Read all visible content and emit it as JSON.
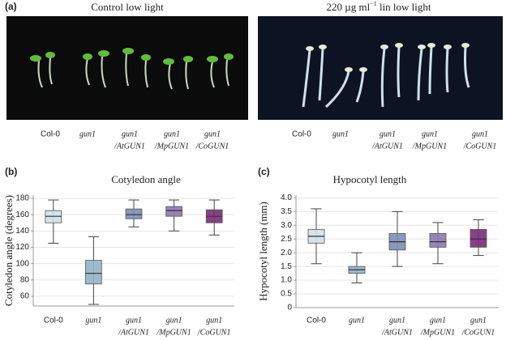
{
  "panel_a": {
    "label": "(a)",
    "photos": [
      {
        "title": [
          "Control low light"
        ],
        "labels": [
          [
            "Col-0"
          ],
          [
            "gun1"
          ],
          [
            "gun1",
            "/AtGUN1"
          ],
          [
            "gun1",
            "/MpGUN1"
          ],
          [
            "gun1",
            "/CoGUN1"
          ]
        ]
      },
      {
        "title": [
          "220 µg ml",
          "−1",
          " lin low light"
        ],
        "labels": [
          [
            "Col-0"
          ],
          [
            "gun1"
          ],
          [
            "gun1",
            "/AtGUN1"
          ],
          [
            "gun1",
            "/MpGUN1"
          ],
          [
            "gun1",
            "/CoGUN1"
          ]
        ]
      }
    ]
  },
  "chart_data": [
    {
      "type": "box",
      "panel": "(b)",
      "title": "Cotyledon angle",
      "ylabel": "Cotyledon angle (degrees)",
      "categories": [
        [
          "Col-0"
        ],
        [
          "gun1"
        ],
        [
          "gun1",
          "/AtGUN1"
        ],
        [
          "gun1",
          "/MpGUN1"
        ],
        [
          "gun1",
          "/CoGUN1"
        ]
      ],
      "boxes": [
        {
          "min": 125,
          "q1": 150,
          "median": 158,
          "q3": 165,
          "max": 178,
          "color": "#d3e0e8"
        },
        {
          "min": 50,
          "q1": 75,
          "median": 88,
          "q3": 104,
          "max": 133,
          "color": "#93b2c9"
        },
        {
          "min": 145,
          "q1": 155,
          "median": 160,
          "q3": 167,
          "max": 178,
          "color": "#7d8db2"
        },
        {
          "min": 140,
          "q1": 158,
          "median": 165,
          "q3": 170,
          "max": 178,
          "color": "#8a79b2"
        },
        {
          "min": 135,
          "q1": 150,
          "median": 158,
          "q3": 166,
          "max": 178,
          "color": "#7a2e78"
        }
      ],
      "ylim": [
        48,
        184
      ],
      "yticks": [
        60,
        80,
        100,
        120,
        140,
        160,
        180
      ],
      "grid": true
    },
    {
      "type": "box",
      "panel": "(c)",
      "title": "Hypocotyl length",
      "ylabel": "Hypocotyl length (mm)",
      "categories": [
        [
          "Col-0"
        ],
        [
          "gun1"
        ],
        [
          "gun1",
          "/AtGUN1"
        ],
        [
          "gun1",
          "/MpGUN1"
        ],
        [
          "gun1",
          "/CoGUN1"
        ]
      ],
      "boxes": [
        {
          "min": 1.6,
          "q1": 2.35,
          "median": 2.6,
          "q3": 2.85,
          "max": 3.6,
          "color": "#d3e0e8"
        },
        {
          "min": 0.9,
          "q1": 1.25,
          "median": 1.38,
          "q3": 1.5,
          "max": 2.0,
          "color": "#93b2c9"
        },
        {
          "min": 1.5,
          "q1": 2.1,
          "median": 2.4,
          "q3": 2.7,
          "max": 3.5,
          "color": "#7d8db2"
        },
        {
          "min": 1.6,
          "q1": 2.2,
          "median": 2.4,
          "q3": 2.7,
          "max": 3.1,
          "color": "#8a79b2"
        },
        {
          "min": 1.9,
          "q1": 2.2,
          "median": 2.5,
          "q3": 2.85,
          "max": 3.2,
          "color": "#7a2e78"
        }
      ],
      "ylim": [
        0,
        4.1
      ],
      "yticks": [
        0,
        0.5,
        {
          "value": 1,
          "label": "1.0"
        },
        1.5,
        {
          "value": 2,
          "label": "2.0"
        },
        2.5,
        {
          "value": 3,
          "label": "3.0"
        },
        3.5,
        {
          "value": 4,
          "label": "4.0"
        }
      ],
      "grid": true
    }
  ]
}
